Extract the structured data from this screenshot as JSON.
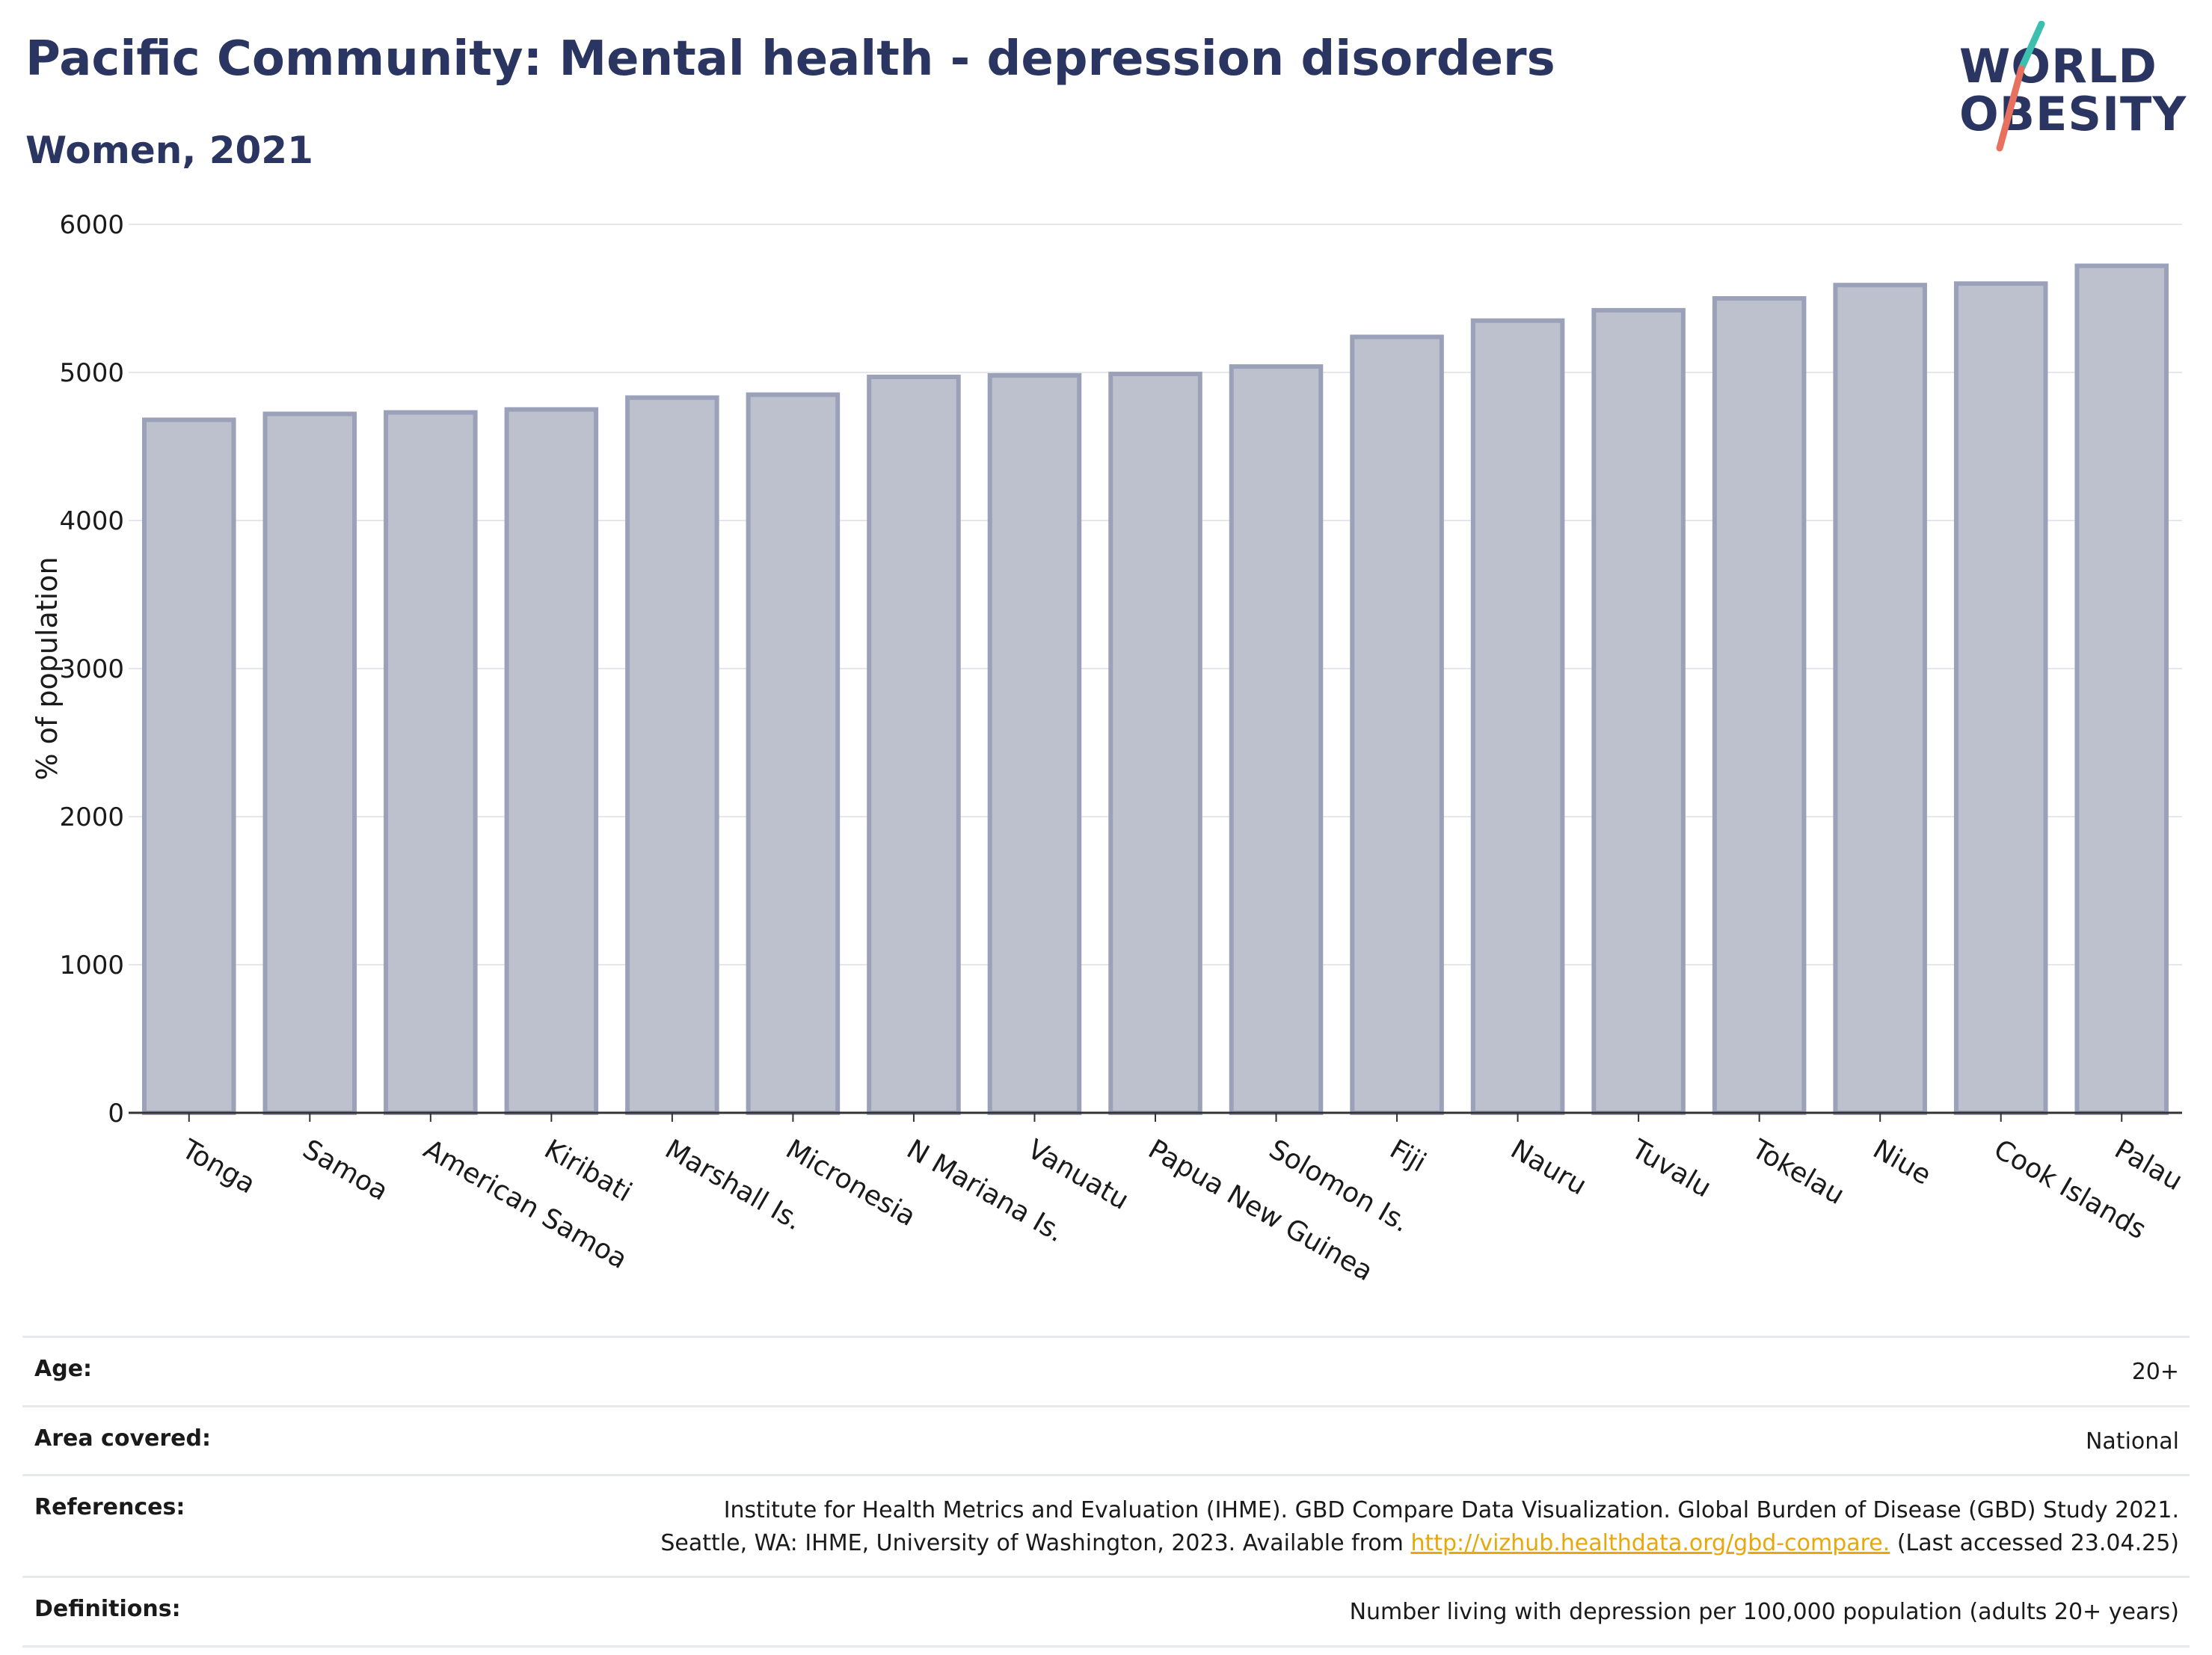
{
  "header": {
    "title": "Pacific Community: Mental health - depression disorders",
    "subtitle": "Women, 2021"
  },
  "logo": {
    "line1": "WORLD",
    "line2": "OBESITY",
    "color": "#2a3561",
    "accent_teal": "#3cbfae",
    "accent_coral": "#e8705f"
  },
  "chart_data": {
    "type": "bar",
    "title": "",
    "xlabel": "",
    "ylabel": "% of population",
    "ylim": [
      0,
      6000
    ],
    "yticks": [
      0,
      1000,
      2000,
      3000,
      4000,
      5000,
      6000
    ],
    "grid": true,
    "legend": "none",
    "bar_color": "#bdc1ce",
    "bar_edge_color": "#9aa1b8",
    "categories": [
      "Tonga",
      "Samoa",
      "American Samoa",
      "Kiribati",
      "Marshall Is.",
      "Micronesia",
      "N Mariana Is.",
      "Vanuatu",
      "Papua New Guinea",
      "Solomon Is.",
      "Fiji",
      "Nauru",
      "Tuvalu",
      "Tokelau",
      "Niue",
      "Cook Islands",
      "Palau"
    ],
    "values": [
      4680,
      4720,
      4730,
      4750,
      4830,
      4850,
      4970,
      4980,
      4990,
      5040,
      5240,
      5350,
      5420,
      5500,
      5590,
      5600,
      5720
    ]
  },
  "meta": {
    "rows": [
      {
        "label": "Age:",
        "value": "20+"
      },
      {
        "label": "Area covered:",
        "value": "National"
      },
      {
        "label": "References:",
        "line1": "Institute for Health Metrics and Evaluation (IHME). GBD Compare Data Visualization. Global Burden of Disease (GBD) Study 2021.",
        "line2_pre": "Seattle, WA: IHME, University of Washington, 2023. Available from ",
        "link": "http://vizhub.healthdata.org/gbd-compare.",
        "line2_post": " (Last accessed 23.04.25)"
      },
      {
        "label": "Definitions:",
        "value": "Number living with depression per 100,000 population (adults 20+ years)"
      }
    ]
  }
}
